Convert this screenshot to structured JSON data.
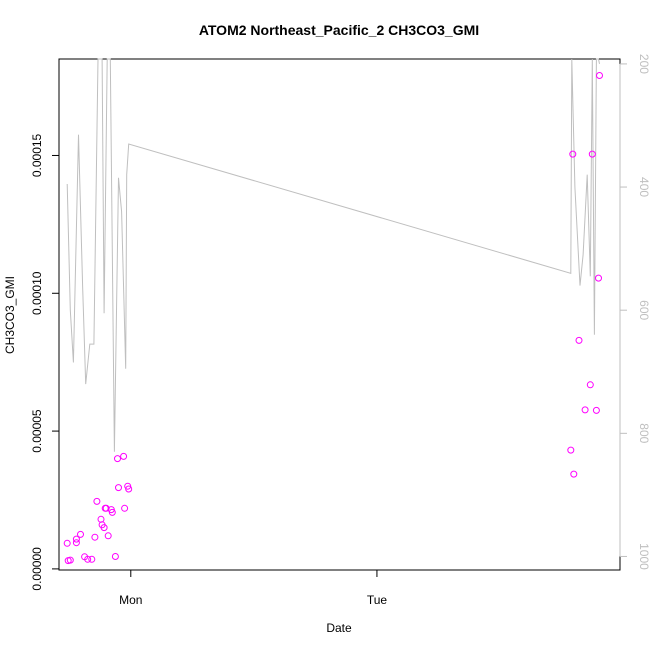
{
  "chart_data": {
    "type": "scatter",
    "title": "ATOM2 Northeast_Pacific_2 CH3CO3_GMI",
    "xlabel": "Date",
    "ylabel": "CH3CO3_GMI",
    "x_tick_labels": [
      "Mon",
      "Tue"
    ],
    "x_ticks_hours": [
      0,
      24
    ],
    "xlim_hours": [
      -7.0,
      47.7
    ],
    "ylim": [
      -4e-07,
      0.000185
    ],
    "y_ticks": [
      0.0,
      5e-05,
      0.0001,
      0.00015
    ],
    "y_tick_labels": [
      "0.00000",
      "0.00005",
      "0.00010",
      "0.00015"
    ],
    "right_axis": {
      "ylim": [
        1022,
        192
      ],
      "ticks": [
        200,
        400,
        600,
        800,
        1000
      ],
      "tick_labels": [
        "200",
        "400",
        "600",
        "800",
        "1000"
      ],
      "color": "#bfbfbf"
    },
    "series": [
      {
        "type": "points",
        "color": "#ff00ff",
        "x": [
          -6.2,
          -6.1,
          -5.9,
          -5.3,
          -5.3,
          -4.9,
          -4.5,
          -4.2,
          -3.8,
          -3.5,
          -3.3,
          -2.9,
          -2.8,
          -2.6,
          -2.5,
          -2.4,
          -2.2,
          -1.9,
          -1.8,
          -1.5,
          -1.3,
          -1.2,
          -0.7,
          -0.6,
          -0.3,
          -0.2,
          42.9,
          43.1,
          43.2,
          43.7,
          44.3,
          44.8,
          45.0,
          45.4,
          45.6,
          45.7
        ],
        "y": [
          9.3e-06,
          3e-06,
          3.2e-06,
          9.5e-06,
          1.08e-05,
          1.25e-05,
          4.4e-06,
          3.5e-06,
          3.5e-06,
          1.15e-05,
          2.45e-05,
          1.8e-05,
          1.6e-05,
          1.5e-05,
          2.2e-05,
          2.2e-05,
          1.2e-05,
          2.15e-05,
          2.05e-05,
          4.5e-06,
          4e-05,
          2.95e-05,
          4.08e-05,
          2.2e-05,
          3e-05,
          2.9e-05,
          4.31e-05,
          0.0001505,
          3.44e-05,
          8.29e-05,
          5.77e-05,
          6.68e-05,
          0.0001505,
          5.75e-05,
          0.0001055,
          0.000179
        ]
      },
      {
        "type": "line",
        "axis": "right",
        "color": "#bfbfbf",
        "x": [
          -6.2,
          -5.9,
          -5.6,
          -5.1,
          -4.7,
          -4.4,
          -4.0,
          -3.6,
          -3.2,
          -2.8,
          -2.6,
          -2.3,
          -2.0,
          -1.6,
          -1.2,
          -0.9,
          -0.5,
          -0.4,
          -0.2,
          42.9,
          43.0,
          43.3,
          43.8,
          44.1,
          44.5,
          44.8,
          45.0,
          45.2,
          45.4,
          45.6,
          45.7
        ],
        "y": [
          395,
          600,
          685,
          315,
          560,
          720,
          655,
          655,
          185,
          185,
          605,
          185,
          185,
          830,
          385,
          440,
          695,
          380,
          330,
          540,
          190,
          400,
          560,
          510,
          380,
          545,
          190,
          640,
          190,
          190,
          200
        ]
      }
    ]
  }
}
